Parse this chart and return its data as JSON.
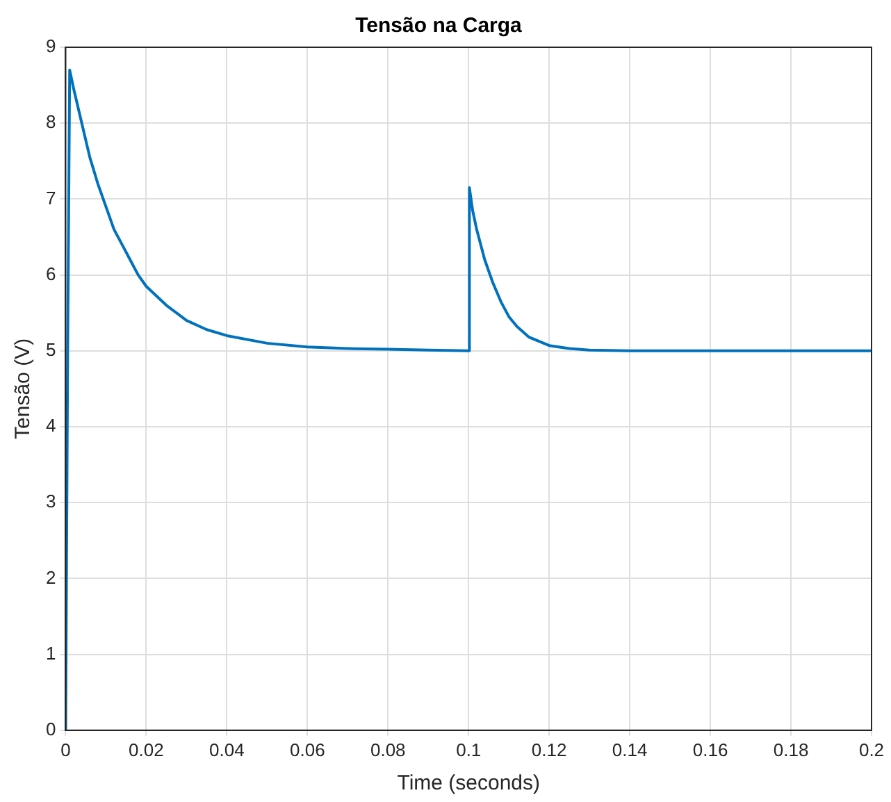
{
  "chart_data": {
    "type": "line",
    "title": "Tensão na Carga",
    "xlabel": "Time (seconds)",
    "ylabel": "Tensão (V)",
    "x": [
      0,
      0.0005,
      0.001,
      0.002,
      0.004,
      0.006,
      0.008,
      0.01,
      0.012,
      0.014,
      0.016,
      0.018,
      0.02,
      0.025,
      0.03,
      0.035,
      0.04,
      0.05,
      0.06,
      0.07,
      0.08,
      0.09,
      0.1,
      0.1002,
      0.101,
      0.102,
      0.104,
      0.106,
      0.108,
      0.11,
      0.112,
      0.115,
      0.12,
      0.125,
      0.13,
      0.14,
      0.2
    ],
    "series": [
      {
        "color": "#0072bd",
        "values": [
          0,
          5.0,
          8.7,
          8.45,
          8.0,
          7.55,
          7.2,
          6.9,
          6.6,
          6.4,
          6.2,
          6.0,
          5.85,
          5.6,
          5.4,
          5.28,
          5.2,
          5.1,
          5.05,
          5.03,
          5.02,
          5.01,
          5.0,
          7.15,
          6.85,
          6.6,
          6.2,
          5.9,
          5.65,
          5.45,
          5.32,
          5.18,
          5.07,
          5.03,
          5.01,
          5.0,
          5.0
        ]
      }
    ],
    "xlim": [
      0,
      0.2
    ],
    "xticks": [
      0,
      0.02,
      0.04,
      0.06,
      0.08,
      0.1,
      0.12,
      0.14,
      0.16,
      0.18,
      0.2
    ],
    "ylim": [
      0,
      9
    ],
    "yticks": [
      0,
      1,
      2,
      3,
      4,
      5,
      6,
      7,
      8,
      9
    ],
    "grid": true,
    "legend": false,
    "marker": "none",
    "line_style": "solid"
  }
}
